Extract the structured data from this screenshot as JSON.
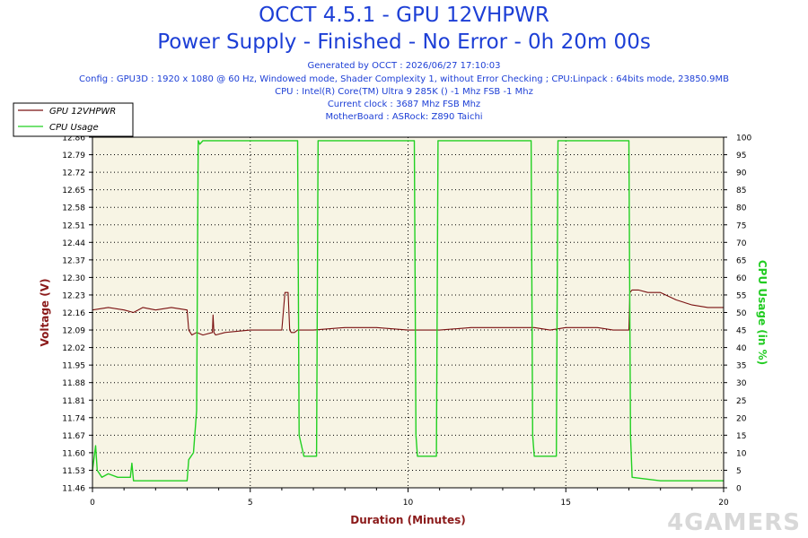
{
  "header": {
    "title": "OCCT 4.5.1 - GPU 12VHPWR",
    "subtitle": "Power Supply - Finished - No Error - 0h 20m 00s",
    "info_lines": [
      "Generated by OCCT : 2026/06/27 17:10:03",
      "Config : GPU3D : 1920 x 1080 @ 60 Hz, Windowed mode, Shader Complexity 1, without Error Checking ; CPU:Linpack : 64bits mode, 23850.9MB",
      "CPU : Intel(R) Core(TM) Ultra 9 285K () -1 Mhz FSB -1 Mhz",
      "Current clock : 3687 Mhz FSB  Mhz",
      "MotherBoard : ASRock: Z890 Taichi"
    ]
  },
  "watermark": "4GAMERS",
  "colors": {
    "voltage": "#7a1010",
    "cpu": "#22d022",
    "title": "#1d3fd6",
    "axis_label_left": "#8b1a1a",
    "axis_label_right": "#22cc22",
    "plot_bg": "#f7f4e4"
  },
  "chart_data": {
    "type": "line",
    "xlabel": "Duration (Minutes)",
    "ylabel": "Voltage (V)",
    "y2label": "CPU Usage (in %)",
    "xlim": [
      0,
      20
    ],
    "ylim": [
      11.46,
      12.86
    ],
    "y2lim": [
      0,
      100
    ],
    "x_ticks": [
      "0",
      "5",
      "10",
      "15",
      "20"
    ],
    "y_ticks": [
      "11.46",
      "11.53",
      "11.60",
      "11.67",
      "11.74",
      "11.81",
      "11.88",
      "11.95",
      "12.02",
      "12.09",
      "12.16",
      "12.23",
      "12.30",
      "12.37",
      "12.44",
      "12.51",
      "12.58",
      "12.65",
      "12.72",
      "12.79",
      "12.86"
    ],
    "y2_ticks": [
      "0",
      "5",
      "10",
      "15",
      "20",
      "25",
      "30",
      "35",
      "40",
      "45",
      "50",
      "55",
      "60",
      "65",
      "70",
      "75",
      "80",
      "85",
      "90",
      "95",
      "100"
    ],
    "grid": true,
    "legend_position": "top-left",
    "series": [
      {
        "name": "GPU 12VHPWR",
        "axis": "left",
        "x": [
          0,
          0.5,
          1.0,
          1.3,
          1.6,
          2.0,
          2.5,
          3.0,
          3.05,
          3.15,
          3.3,
          3.5,
          3.8,
          3.82,
          3.85,
          3.9,
          4.2,
          5.0,
          6.0,
          6.1,
          6.2,
          6.25,
          6.3,
          6.4,
          6.5,
          7.0,
          8.0,
          9.0,
          10.0,
          11.0,
          12.0,
          13.0,
          14.0,
          14.5,
          15.0,
          15.5,
          16.0,
          16.5,
          17.0,
          17.03,
          17.1,
          17.3,
          17.6,
          18.0,
          18.5,
          19.0,
          19.5,
          20.0
        ],
        "y": [
          12.17,
          12.18,
          12.17,
          12.16,
          12.18,
          12.17,
          12.18,
          12.17,
          12.09,
          12.07,
          12.08,
          12.07,
          12.08,
          12.15,
          12.08,
          12.07,
          12.08,
          12.09,
          12.09,
          12.24,
          12.24,
          12.09,
          12.08,
          12.08,
          12.09,
          12.09,
          12.1,
          12.1,
          12.09,
          12.09,
          12.1,
          12.1,
          12.1,
          12.09,
          12.1,
          12.1,
          12.1,
          12.09,
          12.09,
          12.24,
          12.25,
          12.25,
          12.24,
          12.24,
          12.21,
          12.19,
          12.18,
          12.18
        ]
      },
      {
        "name": "CPU Usage",
        "axis": "right",
        "x": [
          0,
          0.1,
          0.15,
          0.3,
          0.5,
          0.8,
          1.2,
          1.25,
          1.3,
          1.6,
          2.0,
          2.5,
          3.0,
          3.05,
          3.2,
          3.3,
          3.35,
          3.4,
          3.5,
          4.0,
          5.0,
          6.0,
          6.5,
          6.55,
          6.7,
          7.0,
          7.1,
          7.15,
          7.2,
          7.5,
          8.0,
          9.0,
          10.0,
          10.2,
          10.25,
          10.3,
          10.6,
          10.9,
          10.95,
          11.0,
          11.5,
          12.0,
          13.0,
          13.9,
          13.95,
          14.0,
          14.3,
          14.7,
          14.75,
          14.8,
          15.0,
          16.0,
          17.0,
          17.05,
          17.1,
          18.0,
          19.0,
          20.0
        ],
        "y": [
          5,
          12,
          5,
          3,
          4,
          3,
          3,
          7,
          2,
          2,
          2,
          2,
          2,
          8,
          10,
          22,
          99,
          98,
          99,
          99,
          99,
          99,
          99,
          15,
          9,
          9,
          9,
          99,
          99,
          99,
          99,
          99,
          99,
          99,
          15,
          9,
          9,
          9,
          99,
          99,
          99,
          99,
          99,
          99,
          15,
          9,
          9,
          9,
          99,
          99,
          99,
          99,
          99,
          15,
          3,
          2,
          2,
          2
        ]
      }
    ]
  }
}
